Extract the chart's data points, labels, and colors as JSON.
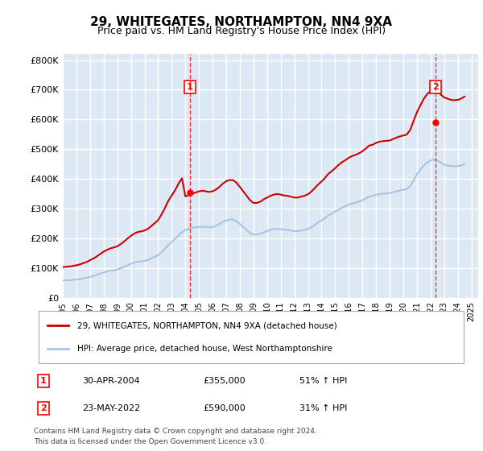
{
  "title": "29, WHITEGATES, NORTHAMPTON, NN4 9XA",
  "subtitle": "Price paid vs. HM Land Registry's House Price Index (HPI)",
  "ylabel_ticks": [
    "£0",
    "£100K",
    "£200K",
    "£300K",
    "£400K",
    "£500K",
    "£600K",
    "£700K",
    "£800K"
  ],
  "ytick_values": [
    0,
    100000,
    200000,
    300000,
    400000,
    500000,
    600000,
    700000,
    800000
  ],
  "ylim": [
    0,
    820000
  ],
  "xlim_start": 1995.0,
  "xlim_end": 2025.5,
  "background_color": "#dce9f5",
  "plot_bg_color": "#dce9f5",
  "grid_color": "#ffffff",
  "sale1_x": 2004.33,
  "sale1_y": 355000,
  "sale1_label": "1",
  "sale1_date": "30-APR-2004",
  "sale1_price": "£355,000",
  "sale1_pct": "51% ↑ HPI",
  "sale2_x": 2022.38,
  "sale2_y": 590000,
  "sale2_label": "2",
  "sale2_date": "23-MAY-2022",
  "sale2_price": "£590,000",
  "sale2_pct": "31% ↑ HPI",
  "hpi_line_color": "#aac4e0",
  "price_line_color": "#cc0000",
  "legend_label_price": "29, WHITEGATES, NORTHAMPTON, NN4 9XA (detached house)",
  "legend_label_hpi": "HPI: Average price, detached house, West Northamptonshire",
  "footer1": "Contains HM Land Registry data © Crown copyright and database right 2024.",
  "footer2": "This data is licensed under the Open Government Licence v3.0.",
  "hpi_data_x": [
    1995,
    1995.25,
    1995.5,
    1995.75,
    1996,
    1996.25,
    1996.5,
    1996.75,
    1997,
    1997.25,
    1997.5,
    1997.75,
    1998,
    1998.25,
    1998.5,
    1998.75,
    1999,
    1999.25,
    1999.5,
    1999.75,
    2000,
    2000.25,
    2000.5,
    2000.75,
    2001,
    2001.25,
    2001.5,
    2001.75,
    2002,
    2002.25,
    2002.5,
    2002.75,
    2003,
    2003.25,
    2003.5,
    2003.75,
    2004,
    2004.25,
    2004.5,
    2004.75,
    2005,
    2005.25,
    2005.5,
    2005.75,
    2006,
    2006.25,
    2006.5,
    2006.75,
    2007,
    2007.25,
    2007.5,
    2007.75,
    2008,
    2008.25,
    2008.5,
    2008.75,
    2009,
    2009.25,
    2009.5,
    2009.75,
    2010,
    2010.25,
    2010.5,
    2010.75,
    2011,
    2011.25,
    2011.5,
    2011.75,
    2012,
    2012.25,
    2012.5,
    2012.75,
    2013,
    2013.25,
    2013.5,
    2013.75,
    2014,
    2014.25,
    2014.5,
    2014.75,
    2015,
    2015.25,
    2015.5,
    2015.75,
    2016,
    2016.25,
    2016.5,
    2016.75,
    2017,
    2017.25,
    2017.5,
    2017.75,
    2018,
    2018.25,
    2018.5,
    2018.75,
    2019,
    2019.25,
    2019.5,
    2019.75,
    2020,
    2020.25,
    2020.5,
    2020.75,
    2021,
    2021.25,
    2021.5,
    2021.75,
    2022,
    2022.25,
    2022.5,
    2022.75,
    2023,
    2023.25,
    2023.5,
    2023.75,
    2024,
    2024.25,
    2024.5
  ],
  "hpi_data_y": [
    58000,
    58500,
    59000,
    60000,
    61000,
    63000,
    65000,
    67000,
    70000,
    73000,
    77000,
    81000,
    85000,
    88000,
    91000,
    92000,
    95000,
    99000,
    104000,
    109000,
    114000,
    118000,
    121000,
    122000,
    124000,
    127000,
    132000,
    137000,
    143000,
    153000,
    165000,
    178000,
    188000,
    198000,
    210000,
    220000,
    228000,
    232000,
    235000,
    237000,
    238000,
    239000,
    238000,
    237000,
    238000,
    242000,
    248000,
    255000,
    260000,
    263000,
    263000,
    257000,
    248000,
    238000,
    228000,
    218000,
    212000,
    212000,
    215000,
    220000,
    224000,
    228000,
    231000,
    232000,
    231000,
    229000,
    228000,
    226000,
    224000,
    224000,
    226000,
    228000,
    231000,
    237000,
    245000,
    253000,
    260000,
    268000,
    277000,
    283000,
    290000,
    297000,
    303000,
    308000,
    313000,
    317000,
    320000,
    323000,
    328000,
    334000,
    340000,
    343000,
    346000,
    349000,
    350000,
    351000,
    352000,
    355000,
    358000,
    361000,
    363000,
    365000,
    375000,
    395000,
    415000,
    430000,
    445000,
    455000,
    462000,
    465000,
    462000,
    455000,
    448000,
    445000,
    443000,
    442000,
    443000,
    445000,
    450000
  ],
  "price_data_x": [
    1995,
    1995.25,
    1995.5,
    1995.75,
    1996,
    1996.25,
    1996.5,
    1996.75,
    1997,
    1997.25,
    1997.5,
    1997.75,
    1998,
    1998.25,
    1998.5,
    1998.75,
    1999,
    1999.25,
    1999.5,
    1999.75,
    2000,
    2000.25,
    2000.5,
    2000.75,
    2001,
    2001.25,
    2001.5,
    2001.75,
    2002,
    2002.25,
    2002.5,
    2002.75,
    2003,
    2003.25,
    2003.5,
    2003.75,
    2004,
    2004.25,
    2004.5,
    2004.75,
    2005,
    2005.25,
    2005.5,
    2005.75,
    2006,
    2006.25,
    2006.5,
    2006.75,
    2007,
    2007.25,
    2007.5,
    2007.75,
    2008,
    2008.25,
    2008.5,
    2008.75,
    2009,
    2009.25,
    2009.5,
    2009.75,
    2010,
    2010.25,
    2010.5,
    2010.75,
    2011,
    2011.25,
    2011.5,
    2011.75,
    2012,
    2012.25,
    2012.5,
    2012.75,
    2013,
    2013.25,
    2013.5,
    2013.75,
    2014,
    2014.25,
    2014.5,
    2014.75,
    2015,
    2015.25,
    2015.5,
    2015.75,
    2016,
    2016.25,
    2016.5,
    2016.75,
    2017,
    2017.25,
    2017.5,
    2017.75,
    2018,
    2018.25,
    2018.5,
    2018.75,
    2019,
    2019.25,
    2019.5,
    2019.75,
    2020,
    2020.25,
    2020.5,
    2020.75,
    2021,
    2021.25,
    2021.5,
    2021.75,
    2022,
    2022.25,
    2022.5,
    2022.75,
    2023,
    2023.25,
    2023.5,
    2023.75,
    2024,
    2024.25,
    2024.5
  ],
  "price_data_y": [
    103000,
    104000,
    105000,
    107000,
    109000,
    112000,
    116000,
    120000,
    126000,
    132000,
    139000,
    147000,
    155000,
    161000,
    166000,
    169000,
    173000,
    180000,
    189000,
    199000,
    208000,
    216000,
    221000,
    223000,
    226000,
    232000,
    241000,
    251000,
    261000,
    280000,
    302000,
    326000,
    344000,
    362000,
    384000,
    402000,
    341000,
    345000,
    350000,
    354000,
    358000,
    360000,
    358000,
    356000,
    358000,
    364000,
    373000,
    384000,
    392000,
    396000,
    396000,
    387000,
    373000,
    358000,
    343000,
    328000,
    319000,
    319000,
    323000,
    331000,
    337000,
    343000,
    347000,
    349000,
    347000,
    344000,
    343000,
    340000,
    337000,
    337000,
    340000,
    343000,
    348000,
    357000,
    369000,
    381000,
    391000,
    403000,
    417000,
    426000,
    436000,
    447000,
    456000,
    463000,
    471000,
    477000,
    481000,
    486000,
    493000,
    502000,
    512000,
    515000,
    521000,
    525000,
    527000,
    528000,
    529000,
    534000,
    539000,
    543000,
    546000,
    549000,
    564000,
    594000,
    624000,
    647000,
    669000,
    685000,
    695000,
    700000,
    695000,
    684000,
    674000,
    670000,
    666000,
    665000,
    666000,
    670000,
    677000
  ],
  "xtick_years": [
    1995,
    1996,
    1997,
    1998,
    1999,
    2000,
    2001,
    2002,
    2003,
    2004,
    2005,
    2006,
    2007,
    2008,
    2009,
    2010,
    2011,
    2012,
    2013,
    2014,
    2015,
    2016,
    2017,
    2018,
    2019,
    2020,
    2021,
    2022,
    2023,
    2024,
    2025
  ]
}
